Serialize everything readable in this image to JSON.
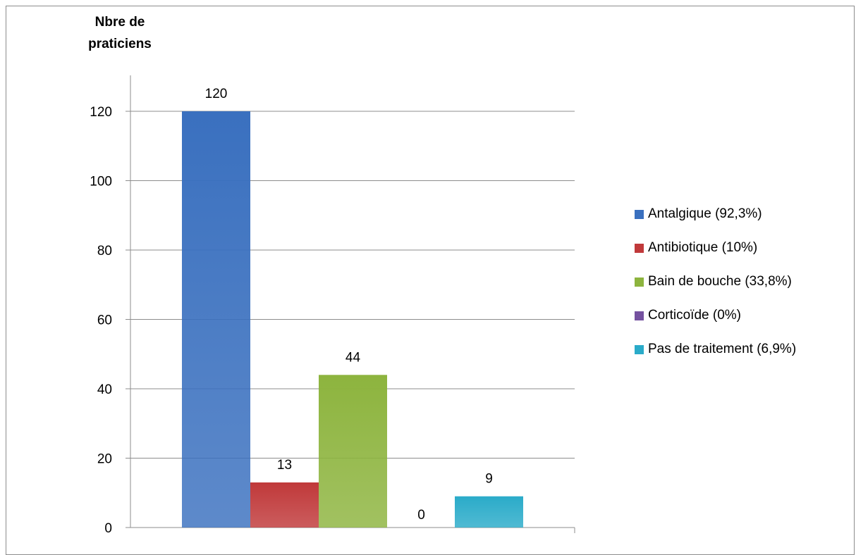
{
  "chart_data": {
    "type": "bar",
    "ylabel": "Nbre de praticiens",
    "ylim": [
      0,
      120
    ],
    "ytick_step": 20,
    "grid": true,
    "legend_position": "right",
    "series": [
      {
        "name": "Antalgique (92,3%)",
        "value": 120,
        "color": "#3a70bf"
      },
      {
        "name": "Antibiotique (10%)",
        "value": 13,
        "color": "#c0393a"
      },
      {
        "name": "Bain de bouche (33,8%)",
        "value": 44,
        "color": "#8db43e"
      },
      {
        "name": "Corticoïde (0%)",
        "value": 0,
        "color": "#7552a0"
      },
      {
        "name": "Pas de traitement (6,9%)",
        "value": 9,
        "color": "#2aabc9"
      }
    ]
  }
}
